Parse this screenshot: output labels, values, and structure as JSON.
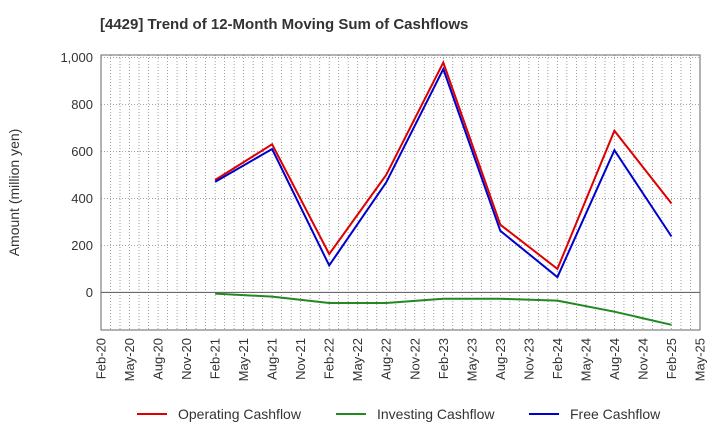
{
  "chart_data": {
    "type": "line",
    "title": "[4429]  Trend of 12-Month Moving Sum of Cashflows",
    "ylabel": "Amount (million yen)",
    "xlabel": "",
    "ylim": [
      -160,
      1010
    ],
    "yticks": [
      0,
      200,
      400,
      600,
      800,
      1000
    ],
    "ytick_labels": [
      "0",
      "200",
      "400",
      "600",
      "800",
      "1,000"
    ],
    "x": [
      "Feb-20",
      "May-20",
      "Aug-20",
      "Nov-20",
      "Feb-21",
      "May-21",
      "Aug-21",
      "Nov-21",
      "Feb-22",
      "May-22",
      "Aug-22",
      "Nov-22",
      "Feb-23",
      "May-23",
      "Aug-23",
      "Nov-23",
      "Feb-24",
      "May-24",
      "Aug-24",
      "Nov-24",
      "Feb-25",
      "May-25"
    ],
    "grid": true,
    "legend_position": "bottom",
    "series": [
      {
        "name": "Operating Cashflow",
        "color": "#dd0000",
        "values": [
          null,
          null,
          null,
          null,
          478,
          null,
          630,
          null,
          163,
          null,
          500,
          null,
          978,
          null,
          288,
          null,
          100,
          null,
          688,
          null,
          378,
          null
        ]
      },
      {
        "name": "Investing Cashflow",
        "color": "#228822",
        "values": [
          null,
          null,
          null,
          null,
          -5,
          null,
          -18,
          null,
          -45,
          null,
          -45,
          null,
          -27,
          null,
          -27,
          null,
          -35,
          null,
          -82,
          null,
          -138,
          null
        ]
      },
      {
        "name": "Free Cashflow",
        "color": "#0000cc",
        "values": [
          null,
          null,
          null,
          null,
          470,
          null,
          610,
          null,
          115,
          null,
          468,
          null,
          950,
          null,
          262,
          null,
          65,
          null,
          605,
          null,
          238,
          null
        ]
      }
    ]
  }
}
